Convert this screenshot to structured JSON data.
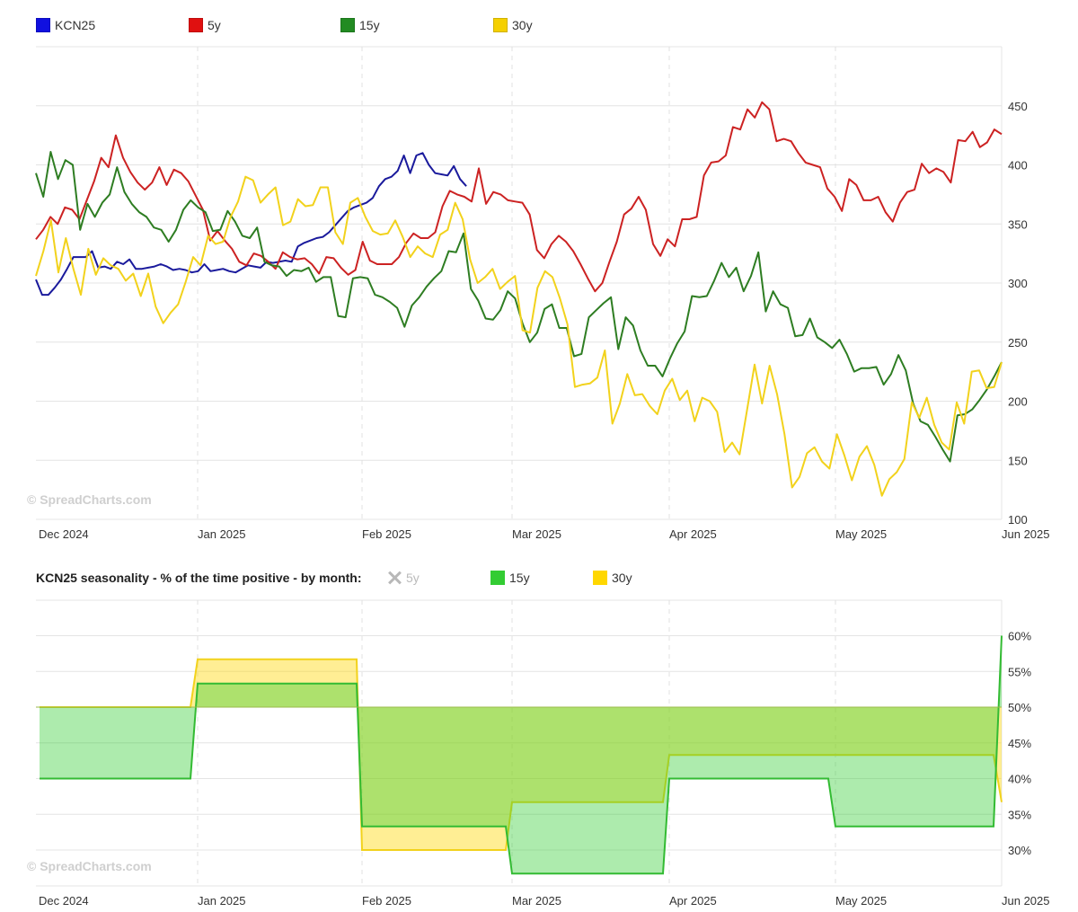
{
  "legend_top": [
    {
      "label": "KCN25",
      "color": "#1010e0"
    },
    {
      "label": "5y",
      "color": "#e01010"
    },
    {
      "label": "15y",
      "color": "#228b22"
    },
    {
      "label": "30y",
      "color": "#f5d000"
    }
  ],
  "watermark": "© SpreadCharts.com",
  "legend_bottom": {
    "title": "KCN25 seasonality - % of the time positive - by month:",
    "items": [
      {
        "label": "5y",
        "color": "#bbbbbb",
        "disabled": true
      },
      {
        "label": "15y",
        "color": "#33cc33",
        "disabled": false
      },
      {
        "label": "30y",
        "color": "#ffd700",
        "disabled": false
      }
    ]
  },
  "chart_data": [
    {
      "type": "line",
      "title": "",
      "x_ticks": [
        "Dec 2024",
        "Jan 2025",
        "Feb 2025",
        "Mar 2025",
        "Apr 2025",
        "May 2025",
        "Jun 2025"
      ],
      "y_ticks": [
        100,
        150,
        200,
        250,
        300,
        350,
        400,
        450
      ],
      "ylim": [
        100,
        500
      ],
      "xlim": [
        "2024-11-29",
        "2025-06-01"
      ],
      "y_axis_side": "right",
      "grid": true,
      "legend_position": "top-left",
      "series": [
        {
          "name": "KCN25",
          "color": "#1a1a9c",
          "x_start": "2024-11-29",
          "x_end": "2025-02-19",
          "values": [
            303,
            290,
            290,
            296,
            303,
            312,
            322,
            322,
            322,
            327,
            313,
            314,
            312,
            318,
            316,
            320,
            312,
            312,
            313,
            314,
            316,
            314,
            311,
            312,
            311,
            309,
            310,
            316,
            310,
            311,
            312,
            310,
            309,
            312,
            315,
            314,
            313,
            318,
            317,
            318,
            319,
            318,
            331,
            334,
            336,
            338,
            339,
            343,
            349,
            355,
            361,
            364,
            366,
            368,
            372,
            382,
            388,
            390,
            395,
            408,
            393,
            408,
            410,
            400,
            393,
            392,
            391,
            399,
            388,
            382
          ]
        },
        {
          "name": "5y",
          "color": "#cc2222",
          "x_start": "2024-11-29",
          "x_end": "2025-06-01",
          "values": [
            337,
            345,
            356,
            350,
            364,
            362,
            354,
            370,
            386,
            406,
            398,
            425,
            406,
            394,
            385,
            379,
            385,
            398,
            383,
            396,
            393,
            386,
            374,
            362,
            336,
            344,
            336,
            329,
            318,
            315,
            325,
            323,
            318,
            312,
            326,
            322,
            320,
            321,
            316,
            308,
            322,
            321,
            313,
            307,
            311,
            335,
            319,
            316,
            316,
            316,
            322,
            334,
            342,
            338,
            338,
            343,
            365,
            378,
            375,
            373,
            369,
            397,
            367,
            377,
            375,
            370,
            369,
            368,
            358,
            328,
            321,
            333,
            340,
            335,
            327,
            316,
            304,
            293,
            300,
            318,
            335,
            358,
            363,
            373,
            362,
            333,
            323,
            337,
            331,
            354,
            354,
            356,
            391,
            402,
            403,
            408,
            432,
            430,
            447,
            440,
            453,
            447,
            420,
            422,
            420,
            410,
            402,
            400,
            398,
            380,
            373,
            361,
            388,
            383,
            370,
            370,
            373,
            360,
            352,
            368,
            377,
            379,
            401,
            393,
            397,
            394,
            385,
            421,
            420,
            428,
            415,
            419,
            430,
            426
          ]
        },
        {
          "name": "15y",
          "color": "#2e7d22",
          "x_start": "2024-11-29",
          "x_end": "2025-06-01",
          "values": [
            393,
            373,
            411,
            388,
            404,
            400,
            345,
            367,
            356,
            368,
            375,
            398,
            377,
            367,
            360,
            356,
            347,
            345,
            335,
            345,
            362,
            370,
            364,
            360,
            344,
            345,
            361,
            352,
            340,
            338,
            347,
            318,
            315,
            314,
            306,
            311,
            310,
            313,
            301,
            305,
            305,
            272,
            271,
            304,
            305,
            304,
            290,
            288,
            284,
            279,
            263,
            281,
            288,
            297,
            304,
            310,
            327,
            326,
            342,
            295,
            285,
            270,
            269,
            277,
            293,
            287,
            266,
            250,
            258,
            278,
            282,
            262,
            262,
            238,
            240,
            271,
            277,
            283,
            288,
            244,
            271,
            264,
            243,
            230,
            230,
            221,
            236,
            249,
            259,
            289,
            288,
            289,
            302,
            317,
            305,
            313,
            293,
            306,
            326,
            276,
            293,
            282,
            279,
            255,
            256,
            270,
            254,
            250,
            245,
            252,
            240,
            225,
            228,
            228,
            229,
            214,
            223,
            239,
            226,
            198,
            183,
            180,
            170,
            159,
            149,
            188,
            189,
            193,
            201,
            210,
            221,
            233
          ]
        },
        {
          "name": "30y",
          "color": "#f2d21c",
          "x_start": "2024-11-29",
          "x_end": "2025-06-01",
          "values": [
            306,
            327,
            353,
            309,
            338,
            312,
            290,
            329,
            307,
            321,
            315,
            312,
            302,
            308,
            289,
            308,
            280,
            266,
            275,
            282,
            301,
            322,
            315,
            340,
            333,
            335,
            356,
            369,
            390,
            387,
            368,
            375,
            381,
            349,
            352,
            371,
            365,
            366,
            381,
            381,
            343,
            333,
            368,
            372,
            356,
            344,
            341,
            342,
            353,
            339,
            322,
            331,
            325,
            322,
            341,
            345,
            368,
            354,
            320,
            300,
            305,
            312,
            295,
            301,
            306,
            260,
            258,
            296,
            310,
            305,
            287,
            265,
            212,
            214,
            215,
            220,
            243,
            181,
            198,
            223,
            205,
            206,
            196,
            189,
            209,
            219,
            201,
            209,
            183,
            203,
            200,
            191,
            157,
            165,
            155,
            193,
            231,
            198,
            230,
            206,
            172,
            127,
            136,
            156,
            161,
            149,
            143,
            172,
            154,
            133,
            153,
            162,
            146,
            120,
            134,
            140,
            151,
            199,
            186,
            203,
            180,
            165,
            159,
            199,
            181,
            225,
            226,
            211,
            212,
            233
          ]
        }
      ]
    },
    {
      "type": "area",
      "title": "KCN25 seasonality - % of the time positive - by month:",
      "x_ticks": [
        "Dec 2024",
        "Jan 2025",
        "Feb 2025",
        "Mar 2025",
        "Apr 2025",
        "May 2025",
        "Jun 2025"
      ],
      "y_ticks": [
        "30%",
        "35%",
        "40%",
        "45%",
        "50%",
        "55%",
        "60%"
      ],
      "ylim": [
        25,
        62
      ],
      "baseline": 50,
      "y_axis_side": "right",
      "series": [
        {
          "name": "5y",
          "visible": false,
          "values": []
        },
        {
          "name": "15y",
          "color": "#33cc33",
          "months": [
            "Dec",
            "Jan",
            "Feb",
            "Mar",
            "Apr",
            "May",
            "Jun"
          ],
          "values": [
            40.0,
            53.3,
            33.3,
            26.7,
            40.0,
            33.3,
            60.0
          ]
        },
        {
          "name": "30y",
          "color": "#ffd700",
          "months": [
            "Dec",
            "Jan",
            "Feb",
            "Mar",
            "Apr",
            "May",
            "Jun"
          ],
          "values": [
            50.0,
            56.7,
            30.0,
            36.7,
            43.3,
            43.3,
            36.7
          ]
        }
      ]
    }
  ]
}
